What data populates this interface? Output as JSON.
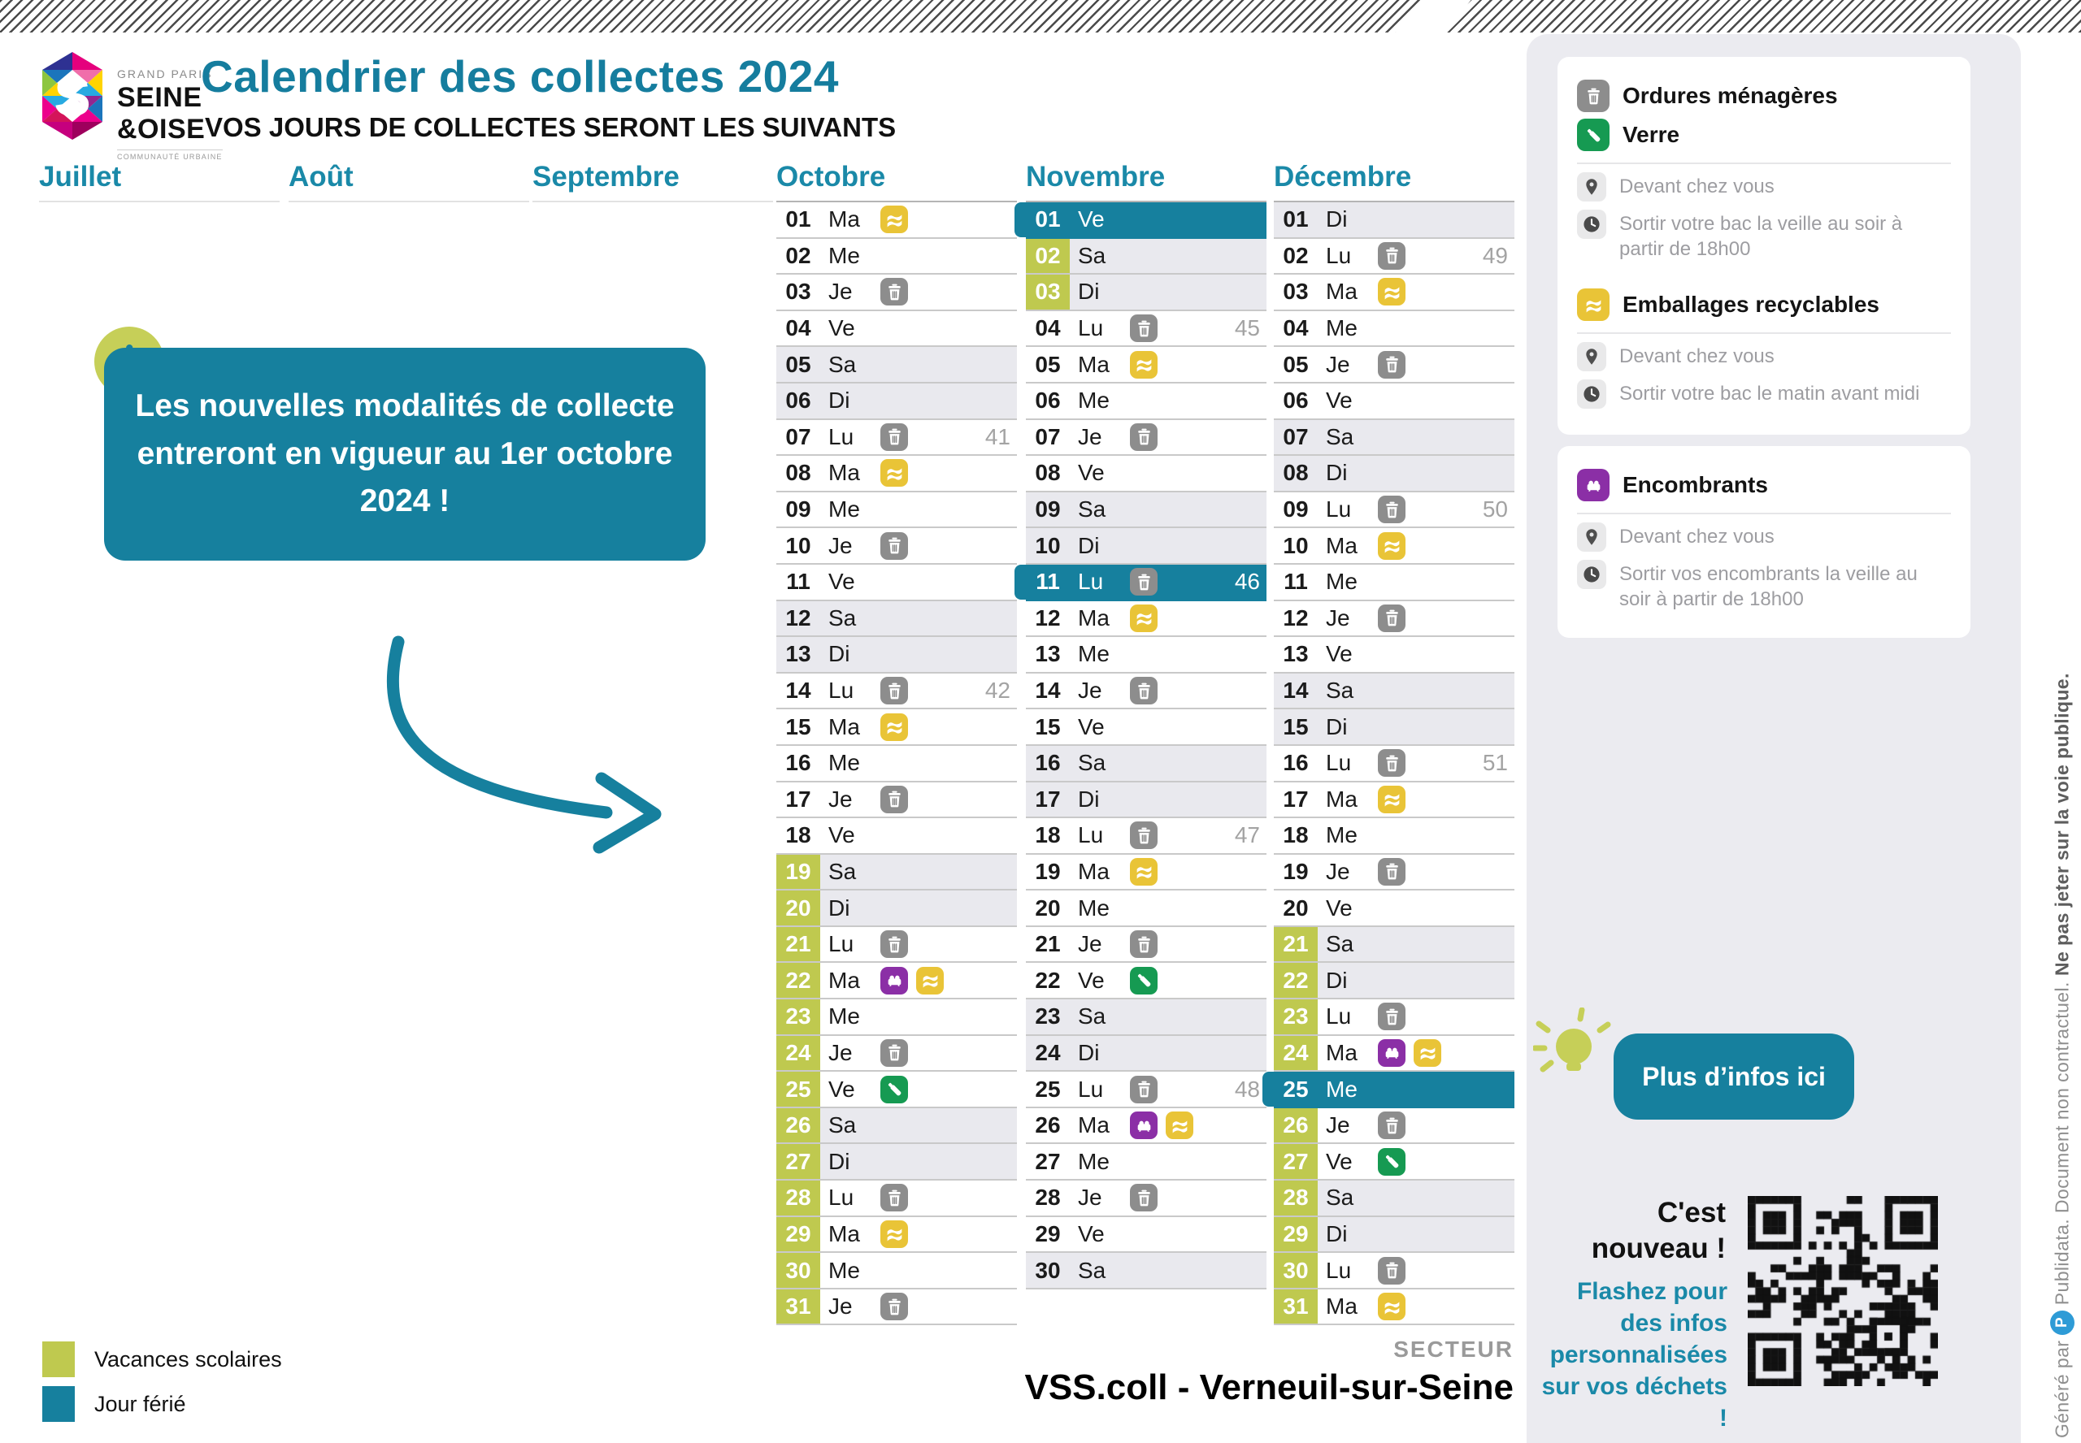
{
  "header": {
    "title": "Calendrier des collectes 2024",
    "subtitle": "VOS JOURS DE COLLECTES SERONT LES SUIVANTS"
  },
  "logo": {
    "top": "GRAND PARIS",
    "line1": "SEINE",
    "line2": "&OISE",
    "bottom": "COMMUNAUTÉ URBAINE",
    "monogram": "S"
  },
  "info": {
    "circle_glyph": "i",
    "text": "Les nouvelles modalités de collecte entreront en vigueur au 1er octobre 2024 !"
  },
  "months": [
    {
      "name": "Juillet",
      "days": []
    },
    {
      "name": "Août",
      "days": []
    },
    {
      "name": "Septembre",
      "days": []
    },
    {
      "name": "Octobre",
      "days": [
        {
          "n": "01",
          "d": "Ma",
          "i": [
            "recycle"
          ]
        },
        {
          "n": "02",
          "d": "Me"
        },
        {
          "n": "03",
          "d": "Je",
          "i": [
            "trash"
          ]
        },
        {
          "n": "04",
          "d": "Ve"
        },
        {
          "n": "05",
          "d": "Sa",
          "we": true
        },
        {
          "n": "06",
          "d": "Di",
          "we": true
        },
        {
          "n": "07",
          "d": "Lu",
          "i": [
            "trash"
          ],
          "w": "41"
        },
        {
          "n": "08",
          "d": "Ma",
          "i": [
            "recycle"
          ]
        },
        {
          "n": "09",
          "d": "Me"
        },
        {
          "n": "10",
          "d": "Je",
          "i": [
            "trash"
          ]
        },
        {
          "n": "11",
          "d": "Ve"
        },
        {
          "n": "12",
          "d": "Sa",
          "we": true
        },
        {
          "n": "13",
          "d": "Di",
          "we": true
        },
        {
          "n": "14",
          "d": "Lu",
          "i": [
            "trash"
          ],
          "w": "42"
        },
        {
          "n": "15",
          "d": "Ma",
          "i": [
            "recycle"
          ]
        },
        {
          "n": "16",
          "d": "Me"
        },
        {
          "n": "17",
          "d": "Je",
          "i": [
            "trash"
          ]
        },
        {
          "n": "18",
          "d": "Ve"
        },
        {
          "n": "19",
          "d": "Sa",
          "we": true,
          "v": true
        },
        {
          "n": "20",
          "d": "Di",
          "we": true,
          "v": true
        },
        {
          "n": "21",
          "d": "Lu",
          "i": [
            "trash"
          ],
          "v": true
        },
        {
          "n": "22",
          "d": "Ma",
          "i": [
            "bulky",
            "recycle"
          ],
          "v": true
        },
        {
          "n": "23",
          "d": "Me",
          "v": true
        },
        {
          "n": "24",
          "d": "Je",
          "i": [
            "trash"
          ],
          "v": true
        },
        {
          "n": "25",
          "d": "Ve",
          "i": [
            "glass"
          ],
          "v": true
        },
        {
          "n": "26",
          "d": "Sa",
          "we": true,
          "v": true
        },
        {
          "n": "27",
          "d": "Di",
          "we": true,
          "v": true
        },
        {
          "n": "28",
          "d": "Lu",
          "i": [
            "trash"
          ],
          "v": true
        },
        {
          "n": "29",
          "d": "Ma",
          "i": [
            "recycle"
          ],
          "v": true
        },
        {
          "n": "30",
          "d": "Me",
          "v": true
        },
        {
          "n": "31",
          "d": "Je",
          "i": [
            "trash"
          ],
          "v": true
        }
      ]
    },
    {
      "name": "Novembre",
      "days": [
        {
          "n": "01",
          "d": "Ve",
          "h": true
        },
        {
          "n": "02",
          "d": "Sa",
          "we": true,
          "v": true
        },
        {
          "n": "03",
          "d": "Di",
          "we": true,
          "v": true
        },
        {
          "n": "04",
          "d": "Lu",
          "i": [
            "trash"
          ],
          "w": "45"
        },
        {
          "n": "05",
          "d": "Ma",
          "i": [
            "recycle"
          ]
        },
        {
          "n": "06",
          "d": "Me"
        },
        {
          "n": "07",
          "d": "Je",
          "i": [
            "trash"
          ]
        },
        {
          "n": "08",
          "d": "Ve"
        },
        {
          "n": "09",
          "d": "Sa",
          "we": true
        },
        {
          "n": "10",
          "d": "Di",
          "we": true
        },
        {
          "n": "11",
          "d": "Lu",
          "i": [
            "trash"
          ],
          "w": "46",
          "h": true
        },
        {
          "n": "12",
          "d": "Ma",
          "i": [
            "recycle"
          ]
        },
        {
          "n": "13",
          "d": "Me"
        },
        {
          "n": "14",
          "d": "Je",
          "i": [
            "trash"
          ]
        },
        {
          "n": "15",
          "d": "Ve"
        },
        {
          "n": "16",
          "d": "Sa",
          "we": true
        },
        {
          "n": "17",
          "d": "Di",
          "we": true
        },
        {
          "n": "18",
          "d": "Lu",
          "i": [
            "trash"
          ],
          "w": "47"
        },
        {
          "n": "19",
          "d": "Ma",
          "i": [
            "recycle"
          ]
        },
        {
          "n": "20",
          "d": "Me"
        },
        {
          "n": "21",
          "d": "Je",
          "i": [
            "trash"
          ]
        },
        {
          "n": "22",
          "d": "Ve",
          "i": [
            "glass"
          ]
        },
        {
          "n": "23",
          "d": "Sa",
          "we": true
        },
        {
          "n": "24",
          "d": "Di",
          "we": true
        },
        {
          "n": "25",
          "d": "Lu",
          "i": [
            "trash"
          ],
          "w": "48"
        },
        {
          "n": "26",
          "d": "Ma",
          "i": [
            "bulky",
            "recycle"
          ]
        },
        {
          "n": "27",
          "d": "Me"
        },
        {
          "n": "28",
          "d": "Je",
          "i": [
            "trash"
          ]
        },
        {
          "n": "29",
          "d": "Ve"
        },
        {
          "n": "30",
          "d": "Sa",
          "we": true
        }
      ]
    },
    {
      "name": "Décembre",
      "days": [
        {
          "n": "01",
          "d": "Di",
          "we": true
        },
        {
          "n": "02",
          "d": "Lu",
          "i": [
            "trash"
          ],
          "w": "49"
        },
        {
          "n": "03",
          "d": "Ma",
          "i": [
            "recycle"
          ]
        },
        {
          "n": "04",
          "d": "Me"
        },
        {
          "n": "05",
          "d": "Je",
          "i": [
            "trash"
          ]
        },
        {
          "n": "06",
          "d": "Ve"
        },
        {
          "n": "07",
          "d": "Sa",
          "we": true
        },
        {
          "n": "08",
          "d": "Di",
          "we": true
        },
        {
          "n": "09",
          "d": "Lu",
          "i": [
            "trash"
          ],
          "w": "50"
        },
        {
          "n": "10",
          "d": "Ma",
          "i": [
            "recycle"
          ]
        },
        {
          "n": "11",
          "d": "Me"
        },
        {
          "n": "12",
          "d": "Je",
          "i": [
            "trash"
          ]
        },
        {
          "n": "13",
          "d": "Ve"
        },
        {
          "n": "14",
          "d": "Sa",
          "we": true
        },
        {
          "n": "15",
          "d": "Di",
          "we": true
        },
        {
          "n": "16",
          "d": "Lu",
          "i": [
            "trash"
          ],
          "w": "51"
        },
        {
          "n": "17",
          "d": "Ma",
          "i": [
            "recycle"
          ]
        },
        {
          "n": "18",
          "d": "Me"
        },
        {
          "n": "19",
          "d": "Je",
          "i": [
            "trash"
          ]
        },
        {
          "n": "20",
          "d": "Ve"
        },
        {
          "n": "21",
          "d": "Sa",
          "we": true,
          "v": true
        },
        {
          "n": "22",
          "d": "Di",
          "we": true,
          "v": true
        },
        {
          "n": "23",
          "d": "Lu",
          "i": [
            "trash"
          ],
          "v": true
        },
        {
          "n": "24",
          "d": "Ma",
          "i": [
            "bulky",
            "recycle"
          ],
          "v": true
        },
        {
          "n": "25",
          "d": "Me",
          "h": true
        },
        {
          "n": "26",
          "d": "Je",
          "i": [
            "trash"
          ],
          "v": true
        },
        {
          "n": "27",
          "d": "Ve",
          "i": [
            "glass"
          ],
          "v": true
        },
        {
          "n": "28",
          "d": "Sa",
          "we": true,
          "v": true
        },
        {
          "n": "29",
          "d": "Di",
          "we": true,
          "v": true
        },
        {
          "n": "30",
          "d": "Lu",
          "i": [
            "trash"
          ],
          "v": true
        },
        {
          "n": "31",
          "d": "Ma",
          "i": [
            "recycle"
          ],
          "v": true
        }
      ]
    }
  ],
  "sidebar": {
    "cards": [
      {
        "categories": [
          {
            "icon": "trash",
            "label": "Ordures ménagères"
          },
          {
            "icon": "glass",
            "label": "Verre"
          }
        ],
        "location": "Devant chez vous",
        "timing": "Sortir votre bac la veille au soir à partir de 18h00"
      },
      {
        "categories": [
          {
            "icon": "recycle",
            "label": "Emballages recyclables"
          }
        ],
        "location": "Devant chez vous",
        "timing": "Sortir votre bac le matin avant midi"
      },
      {
        "categories": [
          {
            "icon": "bulky",
            "label": "Encombrants"
          }
        ],
        "location": "Devant chez vous",
        "timing": "Sortir vos encombrants la veille au soir à partir de 18h00"
      }
    ],
    "more_info": "Plus d’infos ici",
    "new_title": "C'est nouveau !",
    "new_text": "Flashez pour des infos personnalisées sur vos déchets !"
  },
  "legend": [
    {
      "color": "#bfc94f",
      "label": "Vacances scolaires"
    },
    {
      "color": "#16809e",
      "label": "Jour férié"
    }
  ],
  "sector": {
    "label": "SECTEUR",
    "value": "VSS.coll - Verneuil-sur-Seine"
  },
  "side_note": {
    "prefix": "Généré par ",
    "brand_initial": "P",
    "middle": " Publidata. Document non contractuel. ",
    "bold": "Ne pas jeter sur la voie publique."
  },
  "colors": {
    "teal": "#16809e",
    "month_header_teal": "#1a89a8",
    "vacation_green": "#bfc94f",
    "weekend_gray": "#e9e9ee",
    "trash_gray": "#8d8d8d",
    "recycle_yellow": "#e9c437",
    "glass_green": "#169a52",
    "bulky_purple": "#8b2fa6"
  }
}
